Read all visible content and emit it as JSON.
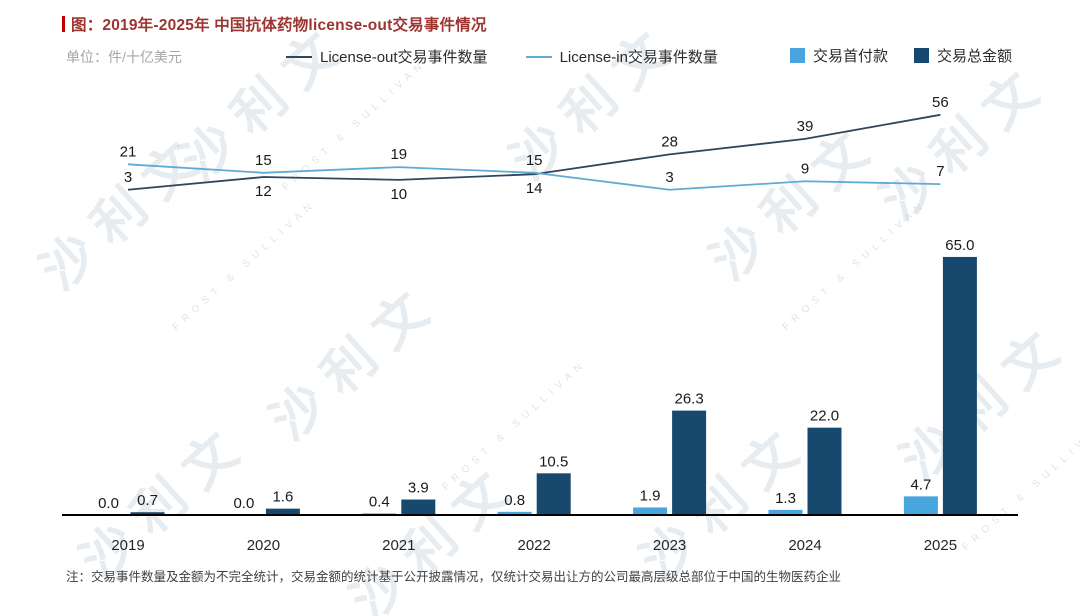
{
  "header": {
    "title": "图：2019年-2025年 中国抗体药物license-out交易事件情况",
    "unit": "单位：件/十亿美元"
  },
  "legend": {
    "line_out": "License-out交易事件数量",
    "line_in": "License-in交易事件数量",
    "bar_upfront": "交易首付款",
    "bar_total": "交易总金额"
  },
  "footnote": "注：交易事件数量及金额为不完全统计，交易金额的统计基于公开披露情况，仅统计交易出让方的公司最高层级总部位于中国的生物医药企业",
  "watermark": {
    "cn": "沙利文",
    "en": "FROST & SULLIVAN"
  },
  "colors": {
    "title_red": "#9c3430",
    "accent_red": "#c00000",
    "unit_gray": "#a6a6a6",
    "label_dark": "#1a1a1a",
    "axis_black": "#000000",
    "line_out": "#31465c",
    "line_in": "#5fabd4",
    "bar_upfront": "#49a5de",
    "bar_total": "#17496f",
    "footnote_gray": "#3f3f3f"
  },
  "chart_data": {
    "type": "combo-line-bar",
    "title": "2019年-2025年 中国抗体药物license-out交易事件情况",
    "unit": "件/十亿美元",
    "categories": [
      "2019",
      "2020",
      "2021",
      "2022",
      "2023",
      "2024",
      "2025"
    ],
    "lines": [
      {
        "name": "License-out交易事件数量",
        "color": "#31465c",
        "values": [
          3,
          12,
          10,
          14,
          28,
          39,
          56
        ],
        "label_below": [
          false,
          true,
          true,
          true,
          false,
          false,
          false
        ]
      },
      {
        "name": "License-in交易事件数量",
        "color": "#5fabd4",
        "values": [
          21,
          15,
          19,
          15,
          3,
          9,
          7
        ],
        "label_below": [
          false,
          false,
          false,
          false,
          false,
          false,
          false
        ]
      }
    ],
    "bars": [
      {
        "name": "交易首付款",
        "color": "#49a5de",
        "values": [
          0.0,
          0.0,
          0.4,
          0.8,
          1.9,
          1.3,
          4.7
        ]
      },
      {
        "name": "交易总金额",
        "color": "#17496f",
        "values": [
          0.7,
          1.6,
          3.9,
          10.5,
          26.3,
          22.0,
          65.0
        ]
      }
    ],
    "grid": false,
    "legend_position": "top"
  }
}
